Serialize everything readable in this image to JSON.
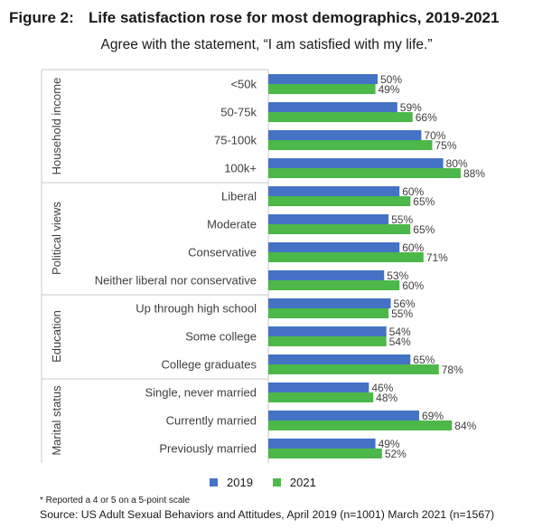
{
  "header": {
    "figure_number": "Figure 2:",
    "title": "Life satisfaction rose for most demographics, 2019-2021",
    "subtitle": "Agree with the statement, “I am satisfied with my life.”"
  },
  "footer": {
    "note": "* Reported a 4 or 5 on a 5-point scale",
    "source": "Source: US Adult Sexual Behaviors and Attitudes, April 2019 (n=1001) March 2021 (n=1567)"
  },
  "colors": {
    "series_2019": "#4472c4",
    "series_2021": "#4cb849",
    "divider": "#c8c8c8",
    "text": "#404040"
  },
  "chart_data": {
    "type": "bar",
    "orientation": "horizontal",
    "value_suffix": "%",
    "xlim": [
      0,
      100
    ],
    "legend_position": "bottom",
    "grid": false,
    "groups": [
      {
        "name": "Household income",
        "categories": [
          "<50k",
          "50-75k",
          "75-100k",
          "100k+"
        ]
      },
      {
        "name": "Political views",
        "categories": [
          "Liberal",
          "Moderate",
          "Conservative",
          "Neither liberal nor conservative"
        ]
      },
      {
        "name": "Education",
        "categories": [
          "Up through high school",
          "Some college",
          "College graduates"
        ]
      },
      {
        "name": "Marital status",
        "categories": [
          "Single, never married",
          "Currently married",
          "Previously married"
        ]
      }
    ],
    "categories": [
      "<50k",
      "50-75k",
      "75-100k",
      "100k+",
      "Liberal",
      "Moderate",
      "Conservative",
      "Neither liberal nor conservative",
      "Up through high school",
      "Some college",
      "College graduates",
      "Single, never married",
      "Currently married",
      "Previously married"
    ],
    "series": [
      {
        "name": "2019",
        "values": [
          50,
          59,
          70,
          80,
          60,
          55,
          60,
          53,
          56,
          54,
          65,
          46,
          69,
          49
        ]
      },
      {
        "name": "2021",
        "values": [
          49,
          66,
          75,
          88,
          65,
          65,
          71,
          60,
          55,
          54,
          78,
          48,
          84,
          52
        ]
      }
    ]
  }
}
